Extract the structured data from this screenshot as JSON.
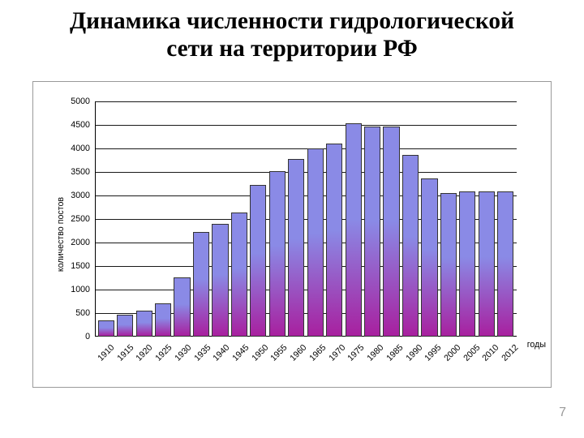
{
  "page_number": "7",
  "title": {
    "line1": "Динамика численности гидрологической",
    "line2": "сети на территории РФ",
    "fontsize_pt": 22,
    "color": "#000000"
  },
  "chart": {
    "type": "bar",
    "yaxis_label": "количество постов",
    "xaxis_label": "годы",
    "ylim": [
      0,
      5000
    ],
    "ytick_step": 500,
    "yticks": [
      "0",
      "500",
      "1000",
      "1500",
      "2000",
      "2500",
      "3000",
      "3500",
      "4000",
      "4500",
      "5000"
    ],
    "categories": [
      "1910",
      "1915",
      "1920",
      "1925",
      "1930",
      "1935",
      "1940",
      "1945",
      "1950",
      "1955",
      "1960",
      "1965",
      "1970",
      "1975",
      "1980",
      "1985",
      "1990",
      "1995",
      "2000",
      "2005",
      "2010",
      "2012"
    ],
    "values": [
      350,
      470,
      550,
      700,
      1260,
      2230,
      2400,
      2630,
      3220,
      3520,
      3770,
      4000,
      4100,
      4530,
      4470,
      4460,
      3870,
      3370,
      3050,
      3080,
      3080,
      3080
    ],
    "bar_fill_top": "#8a8ae6",
    "bar_fill_bottom": "#a8209f",
    "bar_border_color": "#333333",
    "bar_width": 0.86,
    "grid_color": "#000000",
    "axis_color": "#000000",
    "background_color": "#ffffff",
    "frame_border_color": "#9a9a9a",
    "tick_fontsize_pt": 8,
    "axis_label_fontsize_pt": 8
  }
}
